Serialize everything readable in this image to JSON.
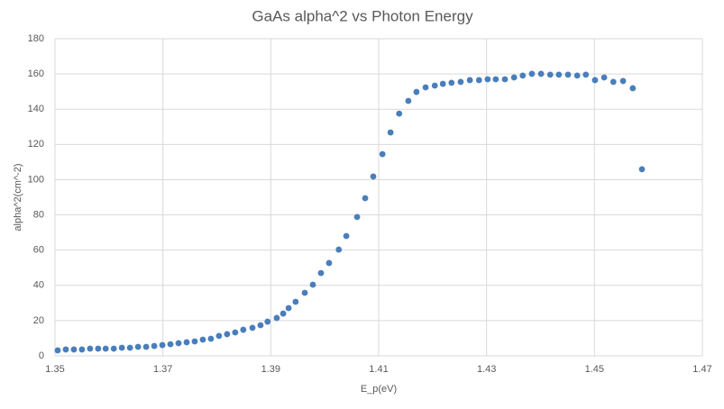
{
  "chart_data": {
    "type": "scatter",
    "title": "GaAs alpha^2 vs Photon Energy",
    "x_label": "E_p(eV)",
    "y_label": "alpha^2(cm^-2)",
    "color": "#4a7ebb",
    "grid": true,
    "xlim": [
      1.35,
      1.47
    ],
    "xticks": [
      1.35,
      1.37,
      1.39,
      1.41,
      1.43,
      1.45,
      1.47
    ],
    "ylim": [
      0,
      180
    ],
    "yticks": [
      0,
      20,
      40,
      60,
      80,
      100,
      120,
      140,
      160,
      180
    ],
    "x": [
      1.3505,
      1.352,
      1.3535,
      1.355,
      1.3565,
      1.358,
      1.3594,
      1.3609,
      1.3624,
      1.3639,
      1.3654,
      1.3669,
      1.3684,
      1.3699,
      1.3714,
      1.3729,
      1.3744,
      1.3759,
      1.3774,
      1.3789,
      1.3804,
      1.3819,
      1.3834,
      1.3849,
      1.3866,
      1.3881,
      1.3894,
      1.3911,
      1.3923,
      1.3933,
      1.3946,
      1.3963,
      1.3978,
      1.3993,
      1.4008,
      1.4026,
      1.404,
      1.406,
      1.4075,
      1.409,
      1.4107,
      1.4122,
      1.4138,
      1.4155,
      1.417,
      1.4187,
      1.4204,
      1.4219,
      1.4235,
      1.4252,
      1.4269,
      1.4286,
      1.4302,
      1.4317,
      1.4334,
      1.4351,
      1.4367,
      1.4384,
      1.4401,
      1.4418,
      1.4434,
      1.4451,
      1.4468,
      1.4484,
      1.4501,
      1.4518,
      1.4535,
      1.4553,
      1.4571,
      1.4588
    ],
    "values": [
      3.1,
      3.6,
      3.6,
      3.6,
      4.1,
      4.1,
      4.1,
      4.1,
      4.6,
      4.6,
      5.1,
      5.1,
      5.6,
      6.1,
      6.6,
      7.2,
      7.7,
      8.2,
      9.2,
      9.7,
      11.3,
      12.3,
      13.3,
      14.8,
      15.9,
      17.4,
      19.4,
      21.5,
      24.0,
      27.1,
      30.7,
      35.8,
      40.4,
      47.0,
      52.7,
      60.3,
      68.0,
      78.8,
      89.5,
      101.8,
      114.5,
      126.8,
      137.5,
      144.7,
      149.8,
      152.4,
      153.4,
      154.4,
      155.0,
      155.5,
      156.5,
      156.5,
      157.0,
      157.0,
      157.0,
      158.0,
      159.1,
      160.1,
      160.1,
      159.6,
      159.6,
      159.6,
      159.1,
      159.6,
      156.5,
      158.0,
      155.5,
      156.0,
      151.9,
      105.9
    ]
  }
}
